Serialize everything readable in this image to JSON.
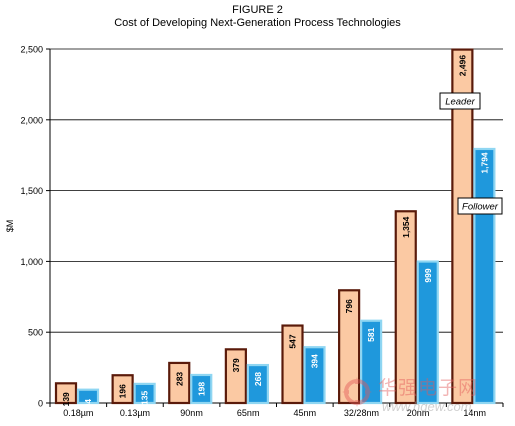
{
  "header": {
    "figure_label": "FIGURE 2",
    "title": "Cost of Developing Next-Generation Process Technologies"
  },
  "watermark": {
    "chinese_text": "华强电子网",
    "url": "www.hqew.com",
    "logo_icon": "hqew-logo-icon"
  },
  "colors": {
    "leader_fill": "#fbc9a3",
    "leader_stroke": "#5a1a0a",
    "follower_fill": "#1f98dc",
    "follower_stroke": "#8fd6f2",
    "gridline": "#000000"
  },
  "chart_data": {
    "type": "bar",
    "title": "Cost of Developing Next-Generation Process Technologies",
    "ylabel": "$M",
    "xlabel": "",
    "ylim": [
      0,
      2500
    ],
    "yticks": [
      0,
      500,
      1000,
      1500,
      2000,
      2500
    ],
    "ytick_labels": [
      "0",
      "500",
      "1,000",
      "1,500",
      "2,000",
      "2,500"
    ],
    "grid": true,
    "categories": [
      "0.18µm",
      "0.13µm",
      "90nm",
      "65nm",
      "45nm",
      "32/28nm",
      "20nm",
      "14nm"
    ],
    "series": [
      {
        "name": "Leader",
        "values": [
          139,
          196,
          283,
          379,
          547,
          796,
          1354,
          2496
        ],
        "labels": [
          "139",
          "196",
          "283",
          "379",
          "547",
          "796",
          "1,354",
          "2,496"
        ]
      },
      {
        "name": "Follower",
        "values": [
          94,
          135,
          198,
          268,
          394,
          581,
          999,
          1794
        ],
        "labels": [
          "94",
          "135",
          "198",
          "268",
          "394",
          "581",
          "999",
          "1,794"
        ]
      }
    ],
    "legend": "annotations-on-14nm-bars"
  }
}
